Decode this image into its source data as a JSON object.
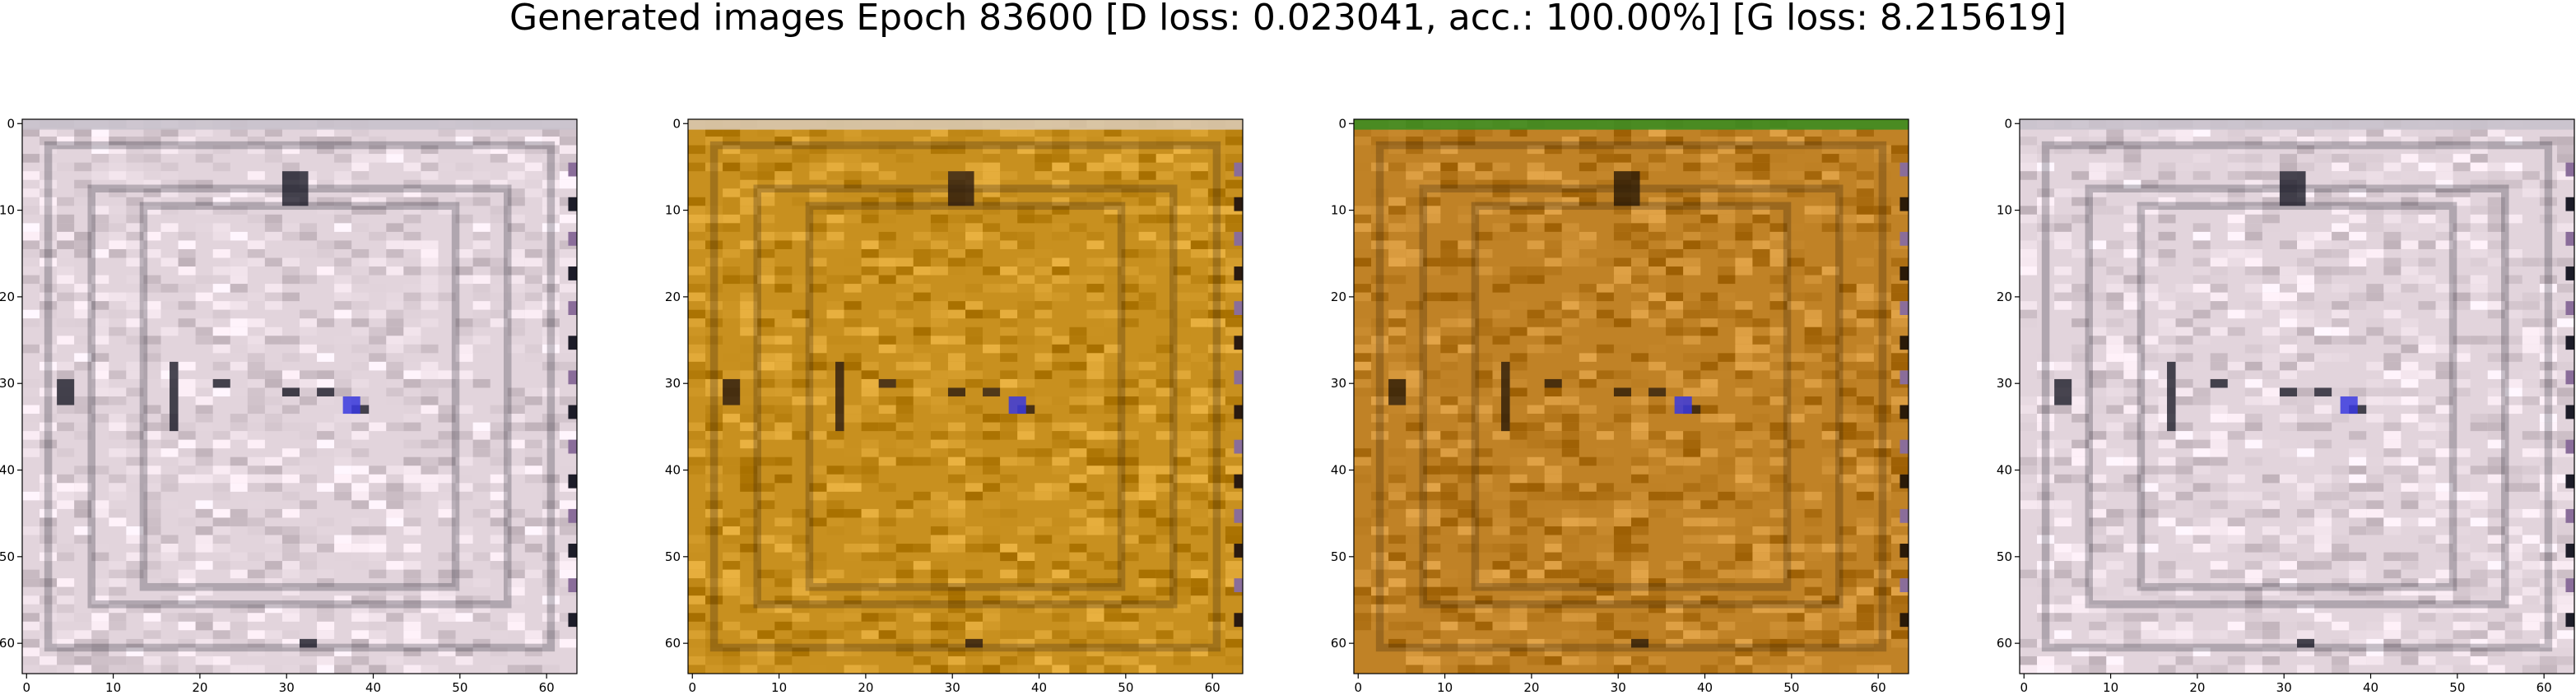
{
  "figure": {
    "title": "Generated images Epoch 83600 [D loss: 0.023041, acc.: 100.00%] [G loss: 8.215619]"
  },
  "panels": [
    {
      "id": "sample-1",
      "palette": "pale-pink-lavender",
      "base_color": "#e2d4dc",
      "border_color": "#c9c2cc",
      "dark_accent": "#1c1c28"
    },
    {
      "id": "sample-2",
      "palette": "gold-ochre-grey",
      "base_color": "#c8901f",
      "border_color": "#d8c8b0",
      "dark_accent": "#2a1a10"
    },
    {
      "id": "sample-3",
      "palette": "ochre-orange-green",
      "base_color": "#c08226",
      "border_color": "#3d8c22",
      "dark_accent": "#2a1a08"
    },
    {
      "id": "sample-4",
      "palette": "pale-pink-lavender",
      "base_color": "#e2d4dc",
      "border_color": "#c9c2cc",
      "dark_accent": "#1c1c28"
    }
  ],
  "axes": {
    "x_ticks": [
      "0",
      "10",
      "20",
      "30",
      "40",
      "50",
      "60"
    ],
    "y_ticks": [
      "0",
      "10",
      "20",
      "30",
      "40",
      "50",
      "60"
    ]
  }
}
